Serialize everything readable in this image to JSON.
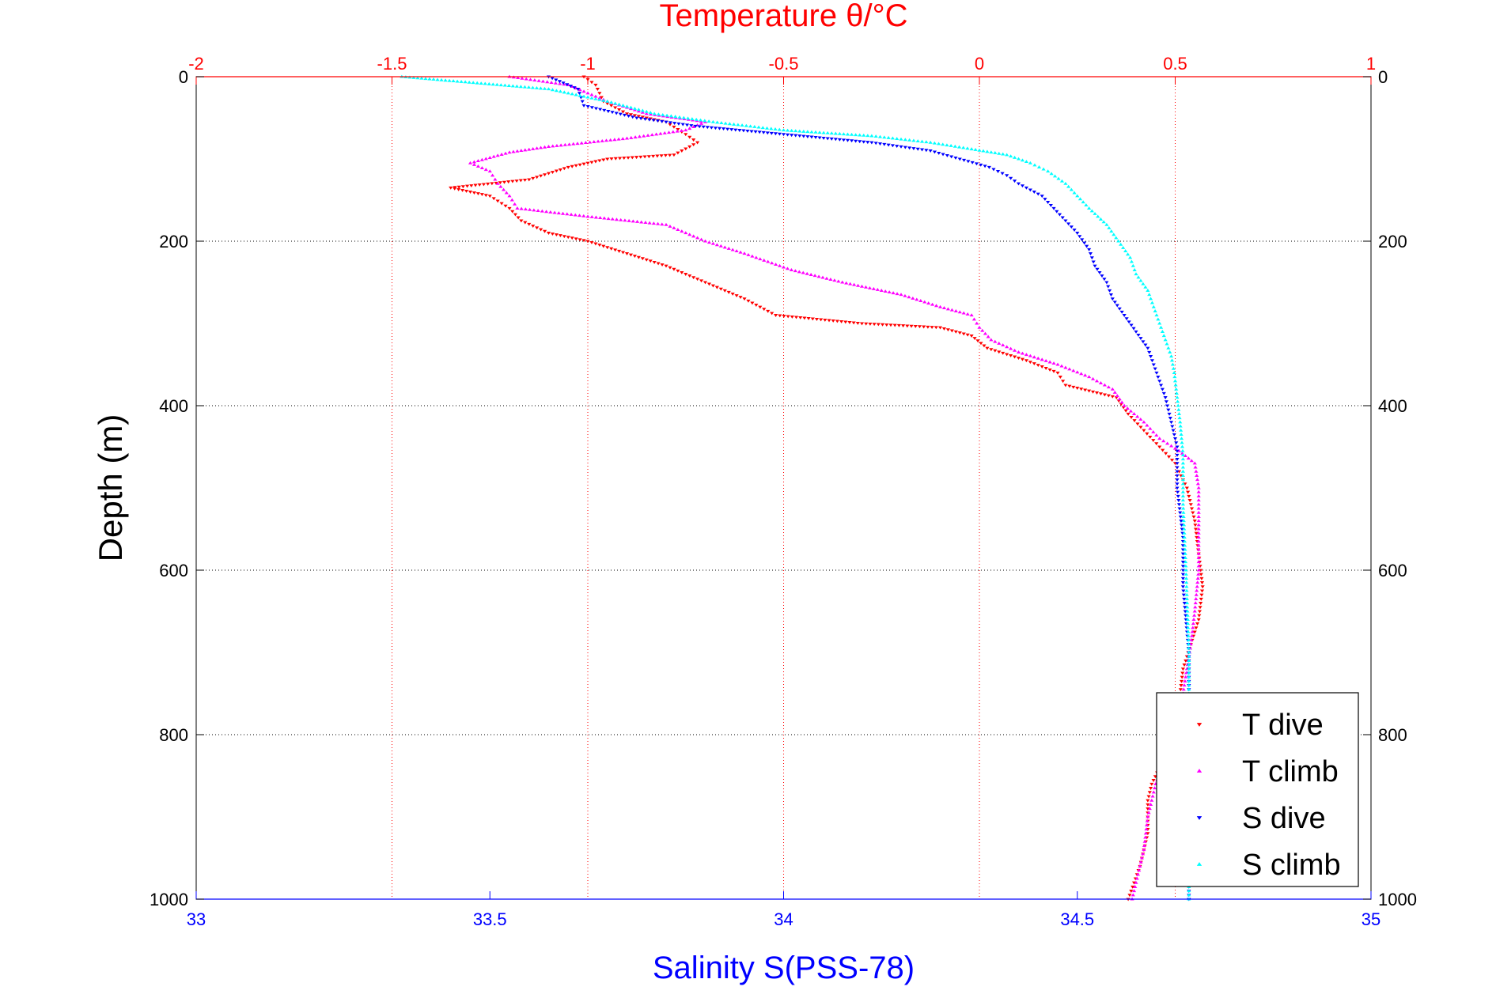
{
  "chart_data": {
    "type": "scatter",
    "title": "Temperature θ/°C",
    "xlabel_top": "Temperature θ/°C",
    "xlabel_bottom": "Salinity S(PSS-78)",
    "ylabel": "Depth (m)",
    "x_top": {
      "range": [
        -2,
        1
      ],
      "ticks": [
        -2,
        -1.5,
        -1,
        -0.5,
        0,
        0.5,
        1
      ],
      "tick_labels": [
        "-2",
        "-1.5",
        "-1",
        "-0.5",
        "0",
        "0.5",
        "1"
      ],
      "color": "#ff0000",
      "grid": "dotted"
    },
    "x_bottom": {
      "range": [
        33,
        35
      ],
      "ticks": [
        33,
        33.5,
        34,
        34.5,
        35
      ],
      "tick_labels": [
        "33",
        "33.5",
        "34",
        "34.5",
        "35"
      ],
      "color": "#0000ff"
    },
    "y": {
      "range": [
        0,
        1000
      ],
      "reversed": true,
      "ticks": [
        0,
        200,
        400,
        600,
        800,
        1000
      ],
      "tick_labels": [
        "0",
        "200",
        "400",
        "600",
        "800",
        "1000"
      ],
      "grid": "dotted"
    },
    "legend": {
      "position": "bottom-right",
      "entries": [
        "T dive",
        "T climb",
        "S dive",
        "S climb"
      ]
    },
    "series": [
      {
        "name": "T dive",
        "axis": "top",
        "marker": "triangle-down",
        "color": "#ff0000",
        "points": [
          [
            -1.01,
            0
          ],
          [
            -0.98,
            10
          ],
          [
            -0.96,
            30
          ],
          [
            -0.9,
            45
          ],
          [
            -0.8,
            55
          ],
          [
            -0.75,
            70
          ],
          [
            -0.72,
            80
          ],
          [
            -0.78,
            95
          ],
          [
            -0.95,
            100
          ],
          [
            -1.05,
            110
          ],
          [
            -1.15,
            125
          ],
          [
            -1.35,
            135
          ],
          [
            -1.25,
            145
          ],
          [
            -1.2,
            160
          ],
          [
            -1.17,
            175
          ],
          [
            -1.1,
            190
          ],
          [
            -1.0,
            200
          ],
          [
            -0.9,
            215
          ],
          [
            -0.8,
            230
          ],
          [
            -0.7,
            250
          ],
          [
            -0.6,
            270
          ],
          [
            -0.52,
            290
          ],
          [
            -0.3,
            300
          ],
          [
            -0.1,
            305
          ],
          [
            -0.02,
            315
          ],
          [
            0.02,
            330
          ],
          [
            0.12,
            345
          ],
          [
            0.2,
            360
          ],
          [
            0.22,
            375
          ],
          [
            0.35,
            390
          ],
          [
            0.38,
            410
          ],
          [
            0.42,
            430
          ],
          [
            0.46,
            450
          ],
          [
            0.5,
            470
          ],
          [
            0.53,
            500
          ],
          [
            0.55,
            540
          ],
          [
            0.56,
            580
          ],
          [
            0.57,
            620
          ],
          [
            0.56,
            660
          ],
          [
            0.54,
            690
          ],
          [
            0.52,
            720
          ],
          [
            0.51,
            760
          ],
          [
            0.5,
            800
          ],
          [
            0.44,
            860
          ],
          [
            0.43,
            880
          ],
          [
            0.43,
            920
          ],
          [
            0.41,
            960
          ],
          [
            0.38,
            1000
          ]
        ]
      },
      {
        "name": "T climb",
        "axis": "top",
        "marker": "triangle-up",
        "color": "#ff00ff",
        "points": [
          [
            -1.2,
            0
          ],
          [
            -1.05,
            10
          ],
          [
            -0.95,
            30
          ],
          [
            -0.85,
            45
          ],
          [
            -0.7,
            55
          ],
          [
            -0.75,
            65
          ],
          [
            -0.9,
            75
          ],
          [
            -1.1,
            85
          ],
          [
            -1.2,
            92
          ],
          [
            -1.3,
            105
          ],
          [
            -1.25,
            115
          ],
          [
            -1.23,
            130
          ],
          [
            -1.2,
            145
          ],
          [
            -1.18,
            160
          ],
          [
            -1.0,
            170
          ],
          [
            -0.8,
            180
          ],
          [
            -0.7,
            200
          ],
          [
            -0.6,
            215
          ],
          [
            -0.48,
            235
          ],
          [
            -0.35,
            250
          ],
          [
            -0.2,
            265
          ],
          [
            -0.1,
            280
          ],
          [
            -0.02,
            290
          ],
          [
            0.0,
            305
          ],
          [
            0.03,
            320
          ],
          [
            0.1,
            335
          ],
          [
            0.2,
            350
          ],
          [
            0.28,
            365
          ],
          [
            0.34,
            380
          ],
          [
            0.37,
            400
          ],
          [
            0.42,
            420
          ],
          [
            0.46,
            440
          ],
          [
            0.51,
            455
          ],
          [
            0.55,
            470
          ],
          [
            0.56,
            500
          ],
          [
            0.56,
            550
          ],
          [
            0.56,
            600
          ],
          [
            0.55,
            650
          ],
          [
            0.54,
            690
          ],
          [
            0.53,
            720
          ],
          [
            0.52,
            750
          ],
          [
            0.5,
            800
          ],
          [
            0.45,
            860
          ],
          [
            0.43,
            900
          ],
          [
            0.42,
            940
          ],
          [
            0.4,
            980
          ],
          [
            0.39,
            1000
          ]
        ]
      },
      {
        "name": "S dive",
        "axis": "bottom",
        "marker": "triangle-down",
        "color": "#0000ff",
        "points": [
          [
            33.6,
            0
          ],
          [
            33.65,
            15
          ],
          [
            33.66,
            35
          ],
          [
            33.75,
            50
          ],
          [
            33.85,
            60
          ],
          [
            34.0,
            70
          ],
          [
            34.15,
            80
          ],
          [
            34.25,
            90
          ],
          [
            34.3,
            100
          ],
          [
            34.35,
            110
          ],
          [
            34.38,
            120
          ],
          [
            34.4,
            130
          ],
          [
            34.44,
            145
          ],
          [
            34.46,
            160
          ],
          [
            34.48,
            175
          ],
          [
            34.5,
            190
          ],
          [
            34.52,
            210
          ],
          [
            34.53,
            230
          ],
          [
            34.55,
            250
          ],
          [
            34.56,
            270
          ],
          [
            34.58,
            290
          ],
          [
            34.6,
            310
          ],
          [
            34.62,
            330
          ],
          [
            34.63,
            350
          ],
          [
            34.64,
            370
          ],
          [
            34.65,
            390
          ],
          [
            34.66,
            420
          ],
          [
            34.67,
            450
          ],
          [
            34.67,
            500
          ],
          [
            34.68,
            560
          ],
          [
            34.68,
            620
          ],
          [
            34.69,
            700
          ],
          [
            34.69,
            800
          ],
          [
            34.69,
            900
          ],
          [
            34.69,
            1000
          ]
        ]
      },
      {
        "name": "S climb",
        "axis": "bottom",
        "marker": "triangle-up",
        "color": "#00ffff",
        "points": [
          [
            33.35,
            0
          ],
          [
            33.6,
            15
          ],
          [
            33.7,
            30
          ],
          [
            33.78,
            45
          ],
          [
            33.88,
            55
          ],
          [
            34.0,
            65
          ],
          [
            34.15,
            72
          ],
          [
            34.25,
            80
          ],
          [
            34.32,
            88
          ],
          [
            34.38,
            95
          ],
          [
            34.42,
            105
          ],
          [
            34.45,
            115
          ],
          [
            34.48,
            130
          ],
          [
            34.5,
            145
          ],
          [
            34.52,
            160
          ],
          [
            34.55,
            180
          ],
          [
            34.57,
            200
          ],
          [
            34.59,
            220
          ],
          [
            34.6,
            240
          ],
          [
            34.62,
            260
          ],
          [
            34.63,
            280
          ],
          [
            34.64,
            300
          ],
          [
            34.65,
            320
          ],
          [
            34.66,
            340
          ],
          [
            34.665,
            360
          ],
          [
            34.67,
            390
          ],
          [
            34.675,
            420
          ],
          [
            34.68,
            460
          ],
          [
            34.68,
            520
          ],
          [
            34.685,
            600
          ],
          [
            34.69,
            700
          ],
          [
            34.69,
            800
          ],
          [
            34.69,
            900
          ],
          [
            34.69,
            1000
          ]
        ]
      }
    ]
  }
}
